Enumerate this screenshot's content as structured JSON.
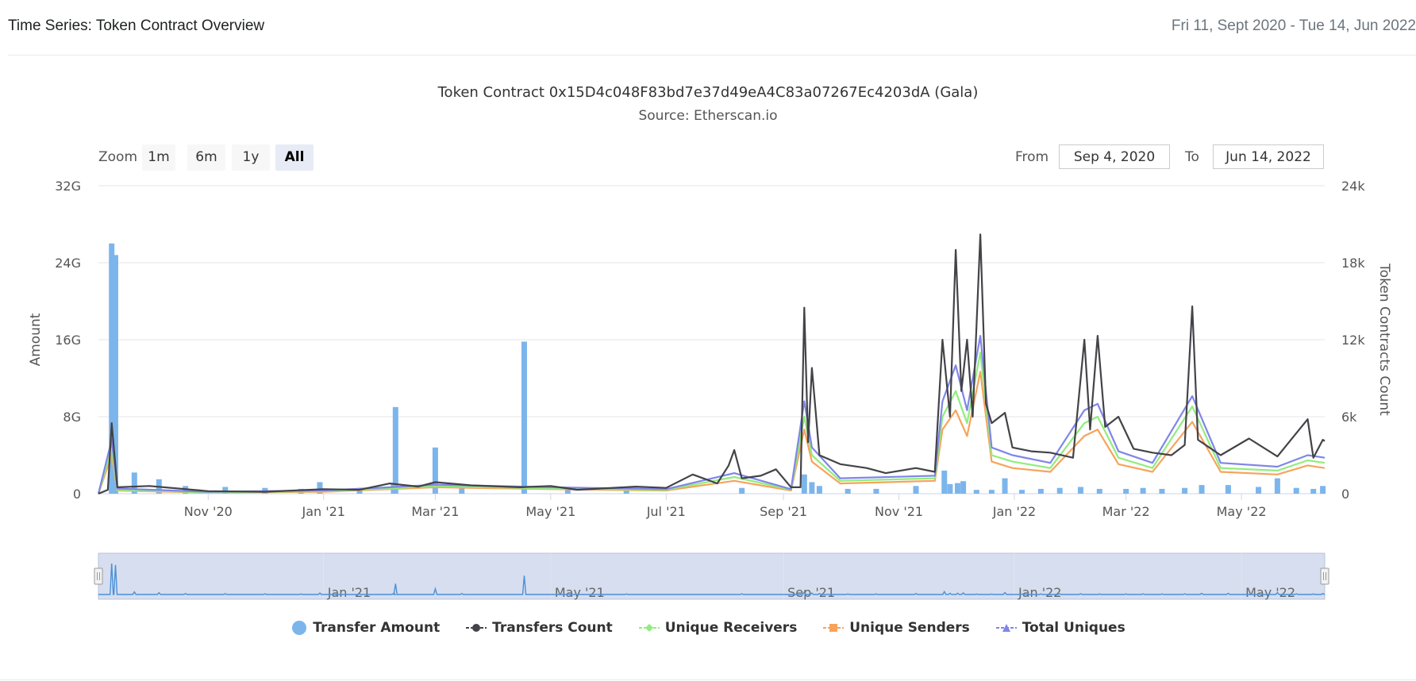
{
  "header": {
    "title": "Time Series: Token Contract Overview",
    "date_range": "Fri 11, Sept 2020 - Tue 14, Jun 2022"
  },
  "chart_header": {
    "title": "Token Contract 0x15D4c048F83bd7e37d49eA4C83a07267Ec4203dA (Gala)",
    "subtitle": "Source: Etherscan.io"
  },
  "zoom": {
    "label": "Zoom",
    "buttons": [
      "1m",
      "6m",
      "1y",
      "All"
    ],
    "active": "All"
  },
  "range": {
    "from_label": "From",
    "from_value": "Sep 4, 2020",
    "to_label": "To",
    "to_value": "Jun 14, 2022"
  },
  "colors": {
    "transfer_amount": "#7cb5ec",
    "transfers_count": "#434348",
    "unique_receivers": "#90ed7d",
    "unique_senders": "#f7a35c",
    "total_uniques": "#8085e9",
    "navigator_fill": "#ccd6eb",
    "navigator_line": "#4a90d9",
    "grid": "#e6e6e6"
  },
  "chart_data": {
    "type": "line",
    "x_range": [
      "2020-09-04",
      "2022-06-14"
    ],
    "x_ticks": [
      {
        "date": "2020-11-01",
        "label": "Nov '20"
      },
      {
        "date": "2021-01-01",
        "label": "Jan '21"
      },
      {
        "date": "2021-03-01",
        "label": "Mar '21"
      },
      {
        "date": "2021-05-01",
        "label": "May '21"
      },
      {
        "date": "2021-07-01",
        "label": "Jul '21"
      },
      {
        "date": "2021-09-01",
        "label": "Sep '21"
      },
      {
        "date": "2021-11-01",
        "label": "Nov '21"
      },
      {
        "date": "2022-01-01",
        "label": "Jan '22"
      },
      {
        "date": "2022-03-01",
        "label": "Mar '22"
      },
      {
        "date": "2022-05-01",
        "label": "May '22"
      }
    ],
    "navigator_ticks": [
      {
        "date": "2021-01-01",
        "label": "Jan '21"
      },
      {
        "date": "2021-05-01",
        "label": "May '21"
      },
      {
        "date": "2021-09-01",
        "label": "Sep '21"
      },
      {
        "date": "2022-01-01",
        "label": "Jan '22"
      },
      {
        "date": "2022-05-01",
        "label": "May '22"
      }
    ],
    "y_left": {
      "label": "Amount",
      "min": 0,
      "max": 32,
      "ticks": [
        0,
        8,
        16,
        24,
        32
      ],
      "tick_labels": [
        "0",
        "8G",
        "16G",
        "24G",
        "32G"
      ],
      "unit": "G"
    },
    "y_right": {
      "label": "Token Contracts Count",
      "min": 0,
      "max": 24000,
      "ticks": [
        0,
        6000,
        12000,
        18000,
        24000
      ],
      "tick_labels": [
        "0",
        "6k",
        "12k",
        "18k",
        "24k"
      ]
    },
    "grid": true,
    "legend_position": "bottom-center",
    "series": [
      {
        "name": "Transfer Amount",
        "kind": "column",
        "axis": "left",
        "points": [
          [
            "2020-09-11",
            26.0
          ],
          [
            "2020-09-13",
            24.8
          ],
          [
            "2020-09-23",
            2.2
          ],
          [
            "2020-10-06",
            1.5
          ],
          [
            "2020-10-20",
            0.8
          ],
          [
            "2020-11-10",
            0.7
          ],
          [
            "2020-12-01",
            0.6
          ],
          [
            "2020-12-20",
            0.5
          ],
          [
            "2020-12-30",
            1.2
          ],
          [
            "2021-01-20",
            0.6
          ],
          [
            "2021-02-07",
            1.0
          ],
          [
            "2021-02-08",
            9.0
          ],
          [
            "2021-03-01",
            4.8
          ],
          [
            "2021-03-15",
            0.8
          ],
          [
            "2021-04-17",
            15.8
          ],
          [
            "2021-05-10",
            0.6
          ],
          [
            "2021-06-10",
            0.5
          ],
          [
            "2021-08-10",
            0.6
          ],
          [
            "2021-09-12",
            2.0
          ],
          [
            "2021-09-16",
            1.2
          ],
          [
            "2021-09-20",
            0.8
          ],
          [
            "2021-10-05",
            0.5
          ],
          [
            "2021-10-20",
            0.5
          ],
          [
            "2021-11-10",
            0.8
          ],
          [
            "2021-11-25",
            2.4
          ],
          [
            "2021-11-28",
            1.0
          ],
          [
            "2021-12-02",
            1.1
          ],
          [
            "2021-12-05",
            1.3
          ],
          [
            "2021-12-12",
            0.4
          ],
          [
            "2021-12-20",
            0.4
          ],
          [
            "2021-12-27",
            1.6
          ],
          [
            "2022-01-05",
            0.4
          ],
          [
            "2022-01-15",
            0.5
          ],
          [
            "2022-01-25",
            0.6
          ],
          [
            "2022-02-05",
            0.7
          ],
          [
            "2022-02-15",
            0.5
          ],
          [
            "2022-03-01",
            0.5
          ],
          [
            "2022-03-10",
            0.6
          ],
          [
            "2022-03-20",
            0.5
          ],
          [
            "2022-04-01",
            0.6
          ],
          [
            "2022-04-10",
            0.9
          ],
          [
            "2022-04-24",
            0.9
          ],
          [
            "2022-05-10",
            0.7
          ],
          [
            "2022-05-20",
            1.6
          ],
          [
            "2022-05-30",
            0.6
          ],
          [
            "2022-06-08",
            0.5
          ],
          [
            "2022-06-13",
            0.8
          ]
        ]
      },
      {
        "name": "Transfers Count",
        "kind": "line",
        "axis": "right",
        "points": [
          [
            "2020-09-04",
            0
          ],
          [
            "2020-09-09",
            300
          ],
          [
            "2020-09-11",
            5500
          ],
          [
            "2020-09-14",
            500
          ],
          [
            "2020-10-01",
            600
          ],
          [
            "2020-11-01",
            200
          ],
          [
            "2020-12-01",
            150
          ],
          [
            "2021-01-01",
            350
          ],
          [
            "2021-01-20",
            300
          ],
          [
            "2021-02-05",
            800
          ],
          [
            "2021-02-20",
            550
          ],
          [
            "2021-03-01",
            900
          ],
          [
            "2021-03-20",
            650
          ],
          [
            "2021-04-15",
            500
          ],
          [
            "2021-05-01",
            600
          ],
          [
            "2021-05-15",
            300
          ],
          [
            "2021-06-15",
            550
          ],
          [
            "2021-07-01",
            450
          ],
          [
            "2021-07-15",
            1500
          ],
          [
            "2021-07-28",
            800
          ],
          [
            "2021-08-03",
            2200
          ],
          [
            "2021-08-06",
            3400
          ],
          [
            "2021-08-10",
            1200
          ],
          [
            "2021-08-20",
            1400
          ],
          [
            "2021-08-28",
            1900
          ],
          [
            "2021-09-05",
            500
          ],
          [
            "2021-09-10",
            500
          ],
          [
            "2021-09-12",
            14500
          ],
          [
            "2021-09-14",
            4000
          ],
          [
            "2021-09-16",
            9800
          ],
          [
            "2021-09-20",
            3000
          ],
          [
            "2021-10-01",
            2300
          ],
          [
            "2021-10-15",
            2000
          ],
          [
            "2021-10-25",
            1600
          ],
          [
            "2021-11-10",
            2000
          ],
          [
            "2021-11-20",
            1700
          ],
          [
            "2021-11-24",
            12000
          ],
          [
            "2021-11-28",
            6000
          ],
          [
            "2021-12-01",
            19000
          ],
          [
            "2021-12-04",
            8000
          ],
          [
            "2021-12-07",
            12000
          ],
          [
            "2021-12-10",
            6000
          ],
          [
            "2021-12-14",
            20200
          ],
          [
            "2021-12-17",
            7000
          ],
          [
            "2021-12-20",
            5500
          ],
          [
            "2021-12-27",
            6300
          ],
          [
            "2021-12-31",
            3600
          ],
          [
            "2022-01-10",
            3300
          ],
          [
            "2022-01-20",
            3200
          ],
          [
            "2022-02-01",
            2800
          ],
          [
            "2022-02-07",
            12000
          ],
          [
            "2022-02-10",
            5000
          ],
          [
            "2022-02-14",
            12300
          ],
          [
            "2022-02-18",
            5200
          ],
          [
            "2022-02-25",
            6000
          ],
          [
            "2022-03-05",
            3500
          ],
          [
            "2022-03-15",
            3200
          ],
          [
            "2022-03-25",
            3000
          ],
          [
            "2022-04-01",
            3800
          ],
          [
            "2022-04-05",
            14600
          ],
          [
            "2022-04-08",
            4200
          ],
          [
            "2022-04-20",
            3000
          ],
          [
            "2022-05-05",
            4300
          ],
          [
            "2022-05-20",
            2900
          ],
          [
            "2022-06-05",
            5800
          ],
          [
            "2022-06-08",
            2800
          ],
          [
            "2022-06-13",
            4200
          ],
          [
            "2022-06-14",
            4100
          ]
        ]
      },
      {
        "name": "Unique Receivers",
        "kind": "line",
        "axis": "right",
        "points": [
          [
            "2020-09-04",
            0
          ],
          [
            "2020-09-11",
            3500
          ],
          [
            "2020-09-14",
            300
          ],
          [
            "2020-11-01",
            100
          ],
          [
            "2021-01-01",
            200
          ],
          [
            "2021-02-05",
            400
          ],
          [
            "2021-03-01",
            600
          ],
          [
            "2021-05-01",
            400
          ],
          [
            "2021-07-01",
            300
          ],
          [
            "2021-08-06",
            1300
          ],
          [
            "2021-09-05",
            300
          ],
          [
            "2021-09-12",
            6000
          ],
          [
            "2021-09-16",
            3000
          ],
          [
            "2021-10-01",
            1000
          ],
          [
            "2021-11-20",
            1200
          ],
          [
            "2021-11-24",
            6000
          ],
          [
            "2021-12-01",
            8000
          ],
          [
            "2021-12-07",
            5500
          ],
          [
            "2021-12-14",
            11000
          ],
          [
            "2021-12-20",
            3000
          ],
          [
            "2021-12-31",
            2500
          ],
          [
            "2022-01-20",
            2000
          ],
          [
            "2022-02-07",
            5500
          ],
          [
            "2022-02-14",
            6000
          ],
          [
            "2022-02-25",
            2800
          ],
          [
            "2022-03-15",
            2000
          ],
          [
            "2022-04-05",
            6800
          ],
          [
            "2022-04-20",
            2000
          ],
          [
            "2022-05-20",
            1800
          ],
          [
            "2022-06-05",
            2600
          ],
          [
            "2022-06-14",
            2400
          ]
        ]
      },
      {
        "name": "Unique Senders",
        "kind": "line",
        "axis": "right",
        "points": [
          [
            "2020-09-04",
            0
          ],
          [
            "2020-09-11",
            3000
          ],
          [
            "2020-09-14",
            250
          ],
          [
            "2020-11-01",
            80
          ],
          [
            "2021-01-01",
            150
          ],
          [
            "2021-02-05",
            350
          ],
          [
            "2021-03-01",
            500
          ],
          [
            "2021-05-01",
            350
          ],
          [
            "2021-07-01",
            250
          ],
          [
            "2021-08-06",
            1000
          ],
          [
            "2021-09-05",
            250
          ],
          [
            "2021-09-12",
            5000
          ],
          [
            "2021-09-16",
            2500
          ],
          [
            "2021-10-01",
            800
          ],
          [
            "2021-11-20",
            1000
          ],
          [
            "2021-11-24",
            5000
          ],
          [
            "2021-12-01",
            6500
          ],
          [
            "2021-12-07",
            4500
          ],
          [
            "2021-12-14",
            9500
          ],
          [
            "2021-12-20",
            2500
          ],
          [
            "2021-12-31",
            2000
          ],
          [
            "2022-01-20",
            1700
          ],
          [
            "2022-02-07",
            4500
          ],
          [
            "2022-02-14",
            5000
          ],
          [
            "2022-02-25",
            2300
          ],
          [
            "2022-03-15",
            1700
          ],
          [
            "2022-04-05",
            5600
          ],
          [
            "2022-04-20",
            1700
          ],
          [
            "2022-05-20",
            1500
          ],
          [
            "2022-06-05",
            2200
          ],
          [
            "2022-06-14",
            2000
          ]
        ]
      },
      {
        "name": "Total Uniques",
        "kind": "line",
        "axis": "right",
        "points": [
          [
            "2020-09-04",
            0
          ],
          [
            "2020-09-11",
            4200
          ],
          [
            "2020-09-14",
            400
          ],
          [
            "2020-11-01",
            150
          ],
          [
            "2021-01-01",
            250
          ],
          [
            "2021-02-05",
            500
          ],
          [
            "2021-03-01",
            700
          ],
          [
            "2021-05-01",
            500
          ],
          [
            "2021-07-01",
            350
          ],
          [
            "2021-08-06",
            1600
          ],
          [
            "2021-09-05",
            350
          ],
          [
            "2021-09-12",
            7200
          ],
          [
            "2021-09-16",
            3600
          ],
          [
            "2021-10-01",
            1200
          ],
          [
            "2021-11-20",
            1400
          ],
          [
            "2021-11-24",
            7200
          ],
          [
            "2021-12-01",
            10000
          ],
          [
            "2021-12-07",
            6500
          ],
          [
            "2021-12-14",
            12300
          ],
          [
            "2021-12-20",
            3600
          ],
          [
            "2021-12-31",
            3000
          ],
          [
            "2022-01-20",
            2400
          ],
          [
            "2022-02-07",
            6500
          ],
          [
            "2022-02-14",
            7000
          ],
          [
            "2022-02-25",
            3300
          ],
          [
            "2022-03-15",
            2400
          ],
          [
            "2022-04-05",
            7600
          ],
          [
            "2022-04-20",
            2400
          ],
          [
            "2022-05-20",
            2100
          ],
          [
            "2022-06-05",
            3000
          ],
          [
            "2022-06-14",
            2800
          ]
        ]
      }
    ]
  }
}
